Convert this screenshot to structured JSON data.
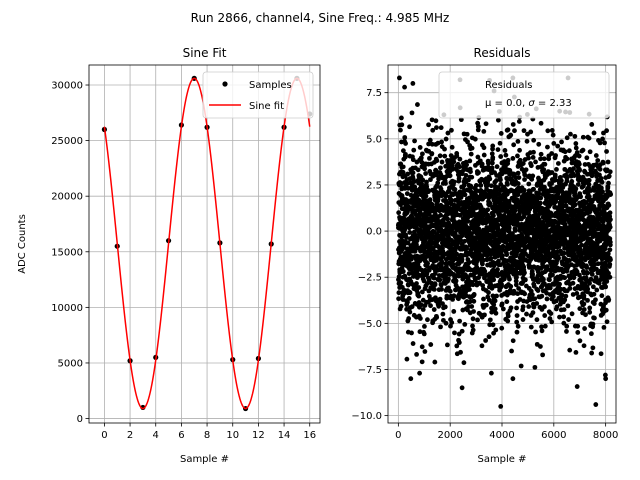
{
  "suptitle": "Run 2866, channel4, Sine Freq.: 4.985 MHz",
  "chart_data": [
    {
      "type": "scatter+line",
      "title": "Sine Fit",
      "xlabel": "Sample #",
      "ylabel": "ADC Counts",
      "xlim": [
        -1.2,
        16.8
      ],
      "ylim": [
        -400,
        31800
      ],
      "xticks": [
        0,
        2,
        4,
        6,
        8,
        10,
        12,
        14,
        16
      ],
      "yticks": [
        0,
        5000,
        10000,
        15000,
        20000,
        25000,
        30000
      ],
      "grid": true,
      "legend_position": "top-right",
      "samples": {
        "name": "Samples",
        "x": [
          0,
          1,
          2,
          3,
          4,
          5,
          6,
          7,
          8,
          9,
          10,
          11,
          12,
          13,
          14,
          15,
          16
        ],
        "y": [
          26000,
          15500,
          5200,
          1000,
          5500,
          16000,
          26400,
          30600,
          26200,
          15800,
          5300,
          900,
          5400,
          15700,
          26200,
          30600,
          27400
        ],
        "color": "#000000"
      },
      "fit": {
        "name": "Sine fit",
        "offset": 15750,
        "amplitude": 14850,
        "period": 8.0,
        "peak_x": 7.0,
        "x_range": [
          0,
          16
        ],
        "color": "#ff0000"
      }
    },
    {
      "type": "scatter",
      "title": "Residuals",
      "xlabel": "Sample #",
      "ylabel": "",
      "xlim": [
        -400,
        8400
      ],
      "ylim": [
        -10.4,
        9.0
      ],
      "xticks": [
        0,
        2000,
        4000,
        6000,
        8000
      ],
      "yticks": [
        -10.0,
        -7.5,
        -5.0,
        -2.5,
        0.0,
        2.5,
        5.0,
        7.5
      ],
      "ytick_labels": [
        "−10.0",
        "−7.5",
        "−5.0",
        "−2.5",
        "0.0",
        "2.5",
        "5.0",
        "7.5"
      ],
      "grid": true,
      "legend_position": "top-right",
      "series": {
        "name": "Residuals",
        "n_points": 8192,
        "mean": 0.0,
        "sigma": 2.33,
        "color": "#000000"
      },
      "legend_line2_prefix": "μ = 0.0, ",
      "legend_line2_sigma": "σ",
      "legend_line2_suffix": " = 2.33",
      "outliers": [
        {
          "x": 40,
          "y": 8.3
        },
        {
          "x": 240,
          "y": 7.8
        },
        {
          "x": 560,
          "y": 8.0
        },
        {
          "x": 2380,
          "y": 8.2
        },
        {
          "x": 6550,
          "y": 8.3
        },
        {
          "x": 4420,
          "y": 8.3
        },
        {
          "x": 3950,
          "y": -9.5
        },
        {
          "x": 7620,
          "y": -9.4
        },
        {
          "x": 480,
          "y": -8.0
        },
        {
          "x": 4420,
          "y": -8.0
        },
        {
          "x": 8000,
          "y": -8.0
        },
        {
          "x": 3590,
          "y": -7.7
        },
        {
          "x": 820,
          "y": -7.7
        },
        {
          "x": 7990,
          "y": -7.8
        }
      ]
    }
  ]
}
